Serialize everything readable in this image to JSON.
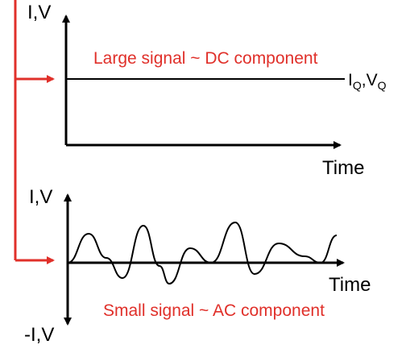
{
  "top_plot": {
    "y_label": "I,V",
    "x_label": "Time",
    "annotation": "Large signal ~ DC component",
    "line_label_main_i": "I",
    "line_label_sub_i": "Q",
    "line_label_sep": ",V",
    "line_label_sub_v": "Q"
  },
  "bottom_plot": {
    "y_label_top": "I,V",
    "y_label_bottom": "-I,V",
    "x_label": "Time",
    "annotation": "Small signal ~ AC component"
  },
  "colors": {
    "annotation": "#e0302a",
    "axes": "#000000",
    "bracket": "#e0302a"
  }
}
